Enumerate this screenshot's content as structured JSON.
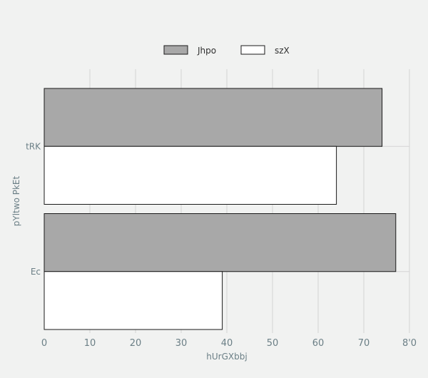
{
  "chart_data": {
    "type": "bar",
    "orientation": "horizontal",
    "categories": [
      "tRK",
      "Ec"
    ],
    "series": [
      {
        "name": "Jhpo",
        "values": [
          74,
          77
        ],
        "color": "#a8a8a8"
      },
      {
        "name": "szX",
        "values": [
          64,
          39
        ],
        "color": "#ffffff"
      }
    ],
    "xlabel": "hUrGXbbj",
    "ylabel": "pYltwo PkEt",
    "xlim": [
      0,
      80
    ],
    "xticks": [
      0,
      10,
      20,
      30,
      40,
      50,
      60,
      70,
      80
    ],
    "x_tick_labels": [
      "0",
      "10",
      "20",
      "30",
      "40",
      "50",
      "60",
      "70",
      "8'0"
    ],
    "grid": "vertical",
    "legend_position": "top-center",
    "colors": {
      "background": "#f1f2f1",
      "grid": "#d4d4d4",
      "bar_stroke": "#1a1a1a",
      "text": "#6b7f86"
    }
  }
}
